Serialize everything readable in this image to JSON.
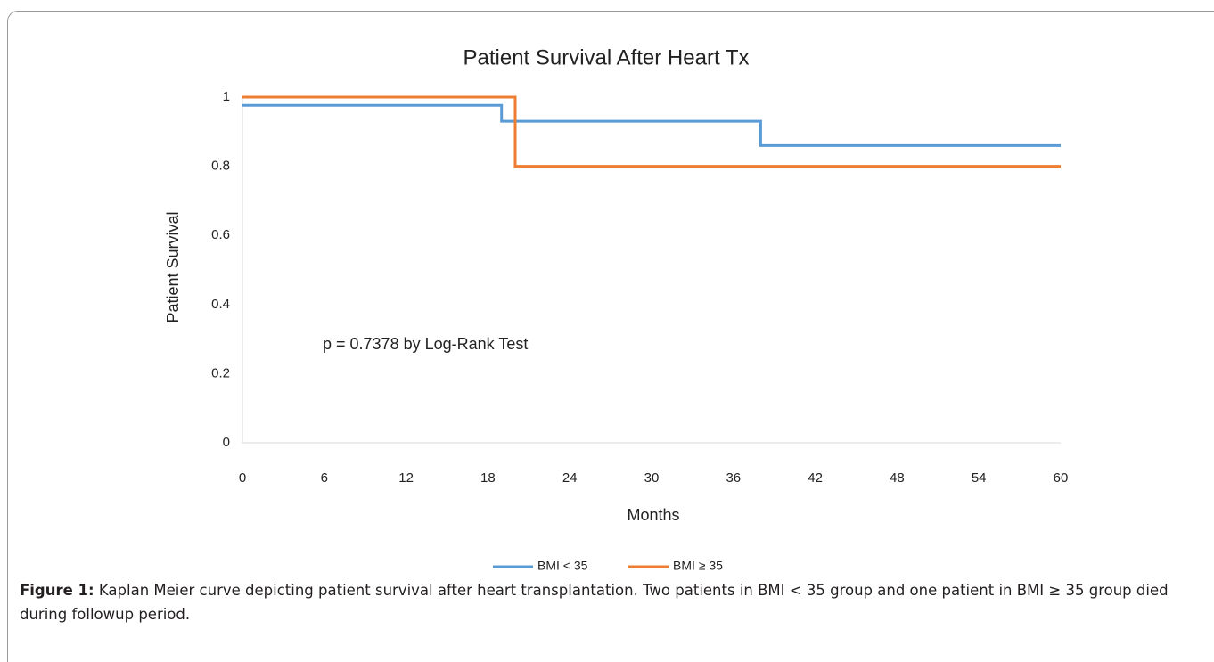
{
  "chart_data": {
    "type": "line",
    "title": "Patient Survival After Heart Tx",
    "xlabel": "Months",
    "ylabel": "Patient Survival",
    "annotation": "p = 0.7378 by Log-Rank Test",
    "xlim": [
      0,
      60
    ],
    "xticks": [
      0,
      6,
      12,
      18,
      24,
      30,
      36,
      42,
      48,
      54,
      60
    ],
    "ylim": [
      0,
      1
    ],
    "yticks": [
      0,
      0.2,
      0.4,
      0.6,
      0.8,
      1
    ],
    "grid": false,
    "legend": "bottom",
    "series": [
      {
        "name": "BMI < 35",
        "color": "#5b9bd5",
        "x": [
          0,
          19,
          19,
          38,
          38,
          60
        ],
        "values": [
          0.976,
          0.976,
          0.93,
          0.93,
          0.86,
          0.86
        ]
      },
      {
        "name": "BMI ≥ 35",
        "color": "#ed7d31",
        "x": [
          0,
          20,
          20,
          60
        ],
        "values": [
          1,
          1,
          0.8,
          0.8
        ]
      }
    ]
  },
  "caption": {
    "label": "Figure 1:",
    "text": "Kaplan Meier curve depicting patient survival after heart transplantation. Two patients in BMI < 35 group and one patient in BMI ≥ 35 group died during followup period."
  }
}
